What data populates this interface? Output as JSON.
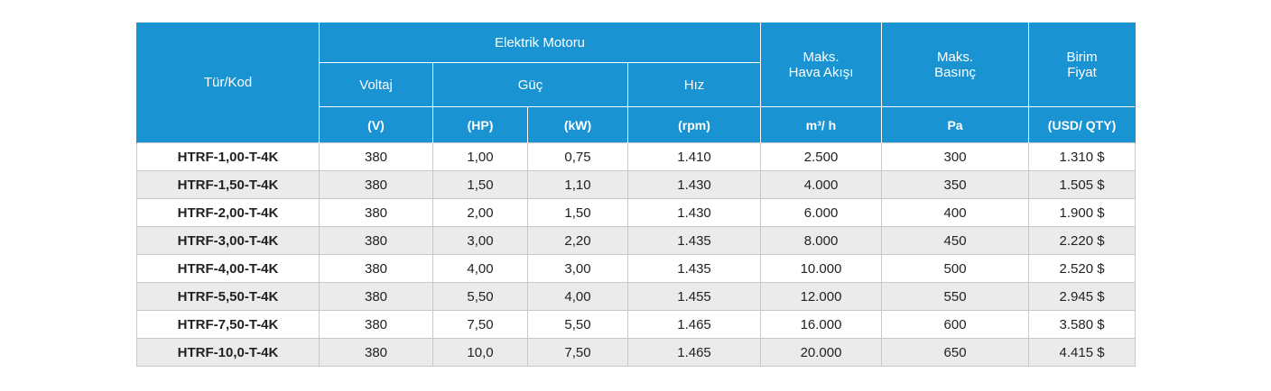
{
  "header": {
    "tur_kod": "Tür/Kod",
    "elektrik_motoru": "Elektrik Motoru",
    "voltaj": "Voltaj",
    "guc": "Güç",
    "hiz": "Hız",
    "maks_hava_1": "Maks.",
    "maks_hava_2": "Hava Akışı",
    "maks_basinc_1": "Maks.",
    "maks_basinc_2": "Basınç",
    "birim_fiyat_1": "Birim",
    "birim_fiyat_2": "Fiyat",
    "unit_v": "(V)",
    "unit_hp": "(HP)",
    "unit_kw": "(kW)",
    "unit_rpm": "(rpm)",
    "unit_flow": "m³/ h",
    "unit_pa": "Pa",
    "unit_price": "(USD/ QTY)"
  },
  "rows": [
    {
      "code": "HTRF-1,00-T-4K",
      "voltaj": "380",
      "hp": "1,00",
      "kw": "0,75",
      "rpm": "1.410",
      "flow": "2.500",
      "pa": "300",
      "price": "1.310 $"
    },
    {
      "code": "HTRF-1,50-T-4K",
      "voltaj": "380",
      "hp": "1,50",
      "kw": "1,10",
      "rpm": "1.430",
      "flow": "4.000",
      "pa": "350",
      "price": "1.505 $"
    },
    {
      "code": "HTRF-2,00-T-4K",
      "voltaj": "380",
      "hp": "2,00",
      "kw": "1,50",
      "rpm": "1.430",
      "flow": "6.000",
      "pa": "400",
      "price": "1.900 $"
    },
    {
      "code": "HTRF-3,00-T-4K",
      "voltaj": "380",
      "hp": "3,00",
      "kw": "2,20",
      "rpm": "1.435",
      "flow": "8.000",
      "pa": "450",
      "price": "2.220 $"
    },
    {
      "code": "HTRF-4,00-T-4K",
      "voltaj": "380",
      "hp": "4,00",
      "kw": "3,00",
      "rpm": "1.435",
      "flow": "10.000",
      "pa": "500",
      "price": "2.520 $"
    },
    {
      "code": "HTRF-5,50-T-4K",
      "voltaj": "380",
      "hp": "5,50",
      "kw": "4,00",
      "rpm": "1.455",
      "flow": "12.000",
      "pa": "550",
      "price": "2.945 $"
    },
    {
      "code": "HTRF-7,50-T-4K",
      "voltaj": "380",
      "hp": "7,50",
      "kw": "5,50",
      "rpm": "1.465",
      "flow": "16.000",
      "pa": "600",
      "price": "3.580 $"
    },
    {
      "code": "HTRF-10,0-T-4K",
      "voltaj": "380",
      "hp": "10,0",
      "kw": "7,50",
      "rpm": "1.465",
      "flow": "20.000",
      "pa": "650",
      "price": "4.415 $"
    }
  ],
  "colors": {
    "header_bg": "#1a93d2",
    "stripe_bg": "#ebebeb"
  }
}
